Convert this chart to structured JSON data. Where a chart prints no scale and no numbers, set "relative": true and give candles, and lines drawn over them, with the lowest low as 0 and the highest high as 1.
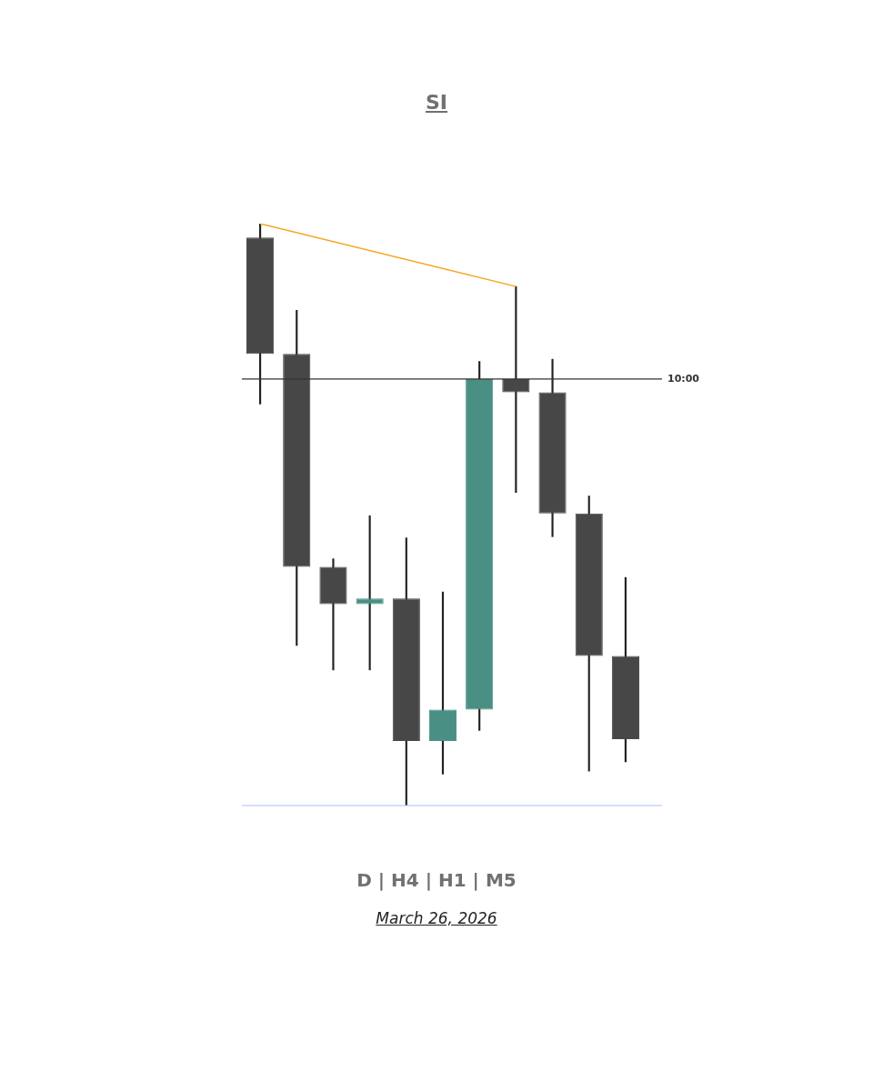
{
  "chart_data": {
    "type": "candlestick",
    "title": "SI",
    "relative": true,
    "categories": [
      null,
      null,
      null,
      null,
      null,
      null,
      null,
      null,
      null,
      null,
      null
    ],
    "ohlc": [
      [
        0.976,
        1,
        0.69,
        0.776
      ],
      [
        0.776,
        0.851,
        0.275,
        0.41
      ],
      [
        0.41,
        0.424,
        0.233,
        0.346
      ],
      [
        0.346,
        0.498,
        0.233,
        0.356
      ],
      [
        0.356,
        0.46,
        0,
        0.111
      ],
      [
        0.111,
        0.367,
        0.054,
        0.165
      ],
      [
        0.165,
        0.763,
        0.129,
        0.733
      ],
      [
        0.733,
        0.892,
        0.538,
        0.71
      ],
      [
        0.71,
        0.767,
        0.462,
        0.502
      ],
      [
        0.502,
        0.532,
        0.059,
        0.257
      ],
      [
        0.257,
        0.392,
        0.075,
        0.114
      ]
    ],
    "colors": [
      "#474747",
      "#474747",
      "#474747",
      "#4a8f84",
      "#474747",
      "#4a8f84",
      "#4a8f84",
      "#474747",
      "#474747",
      "#474747",
      "#474747"
    ],
    "series": [
      {
        "type": "line",
        "color": "#f5a623",
        "values": [
          1,
          null,
          null,
          null,
          null,
          null,
          null,
          0.892,
          null,
          null,
          null
        ]
      }
    ],
    "ref_lines": [
      {
        "axis": "y",
        "value": 0.733,
        "color": "#333333"
      },
      {
        "axis": "y",
        "value": 0,
        "color": "#a8bff0"
      }
    ],
    "annotations": [
      "10:00",
      "D | H4 | H1 | M5",
      "March 26, 2026"
    ],
    "legend": false,
    "grid": false
  }
}
